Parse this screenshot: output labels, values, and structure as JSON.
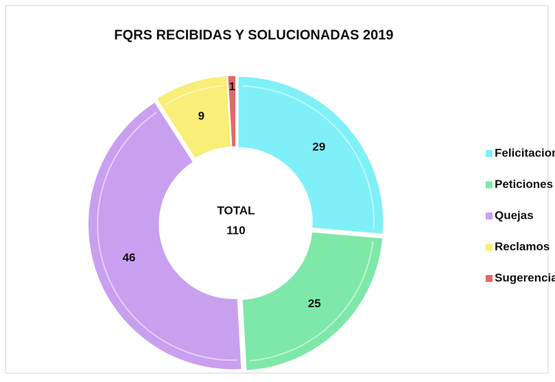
{
  "chart_data": {
    "type": "donut",
    "title": "FQRS RECIBIDAS Y SOLUCIONADAS 2019",
    "categories": [
      "Felicitaciones",
      "Peticiones",
      "Quejas",
      "Reclamos",
      "Sugerencias"
    ],
    "values": [
      29,
      25,
      46,
      9,
      1
    ],
    "colors": [
      "#7ff0f8",
      "#7ee8a8",
      "#c9a0f0",
      "#f8ee78",
      "#e06a6a"
    ],
    "center_label": "TOTAL",
    "center_value": 110,
    "legend": "right"
  }
}
